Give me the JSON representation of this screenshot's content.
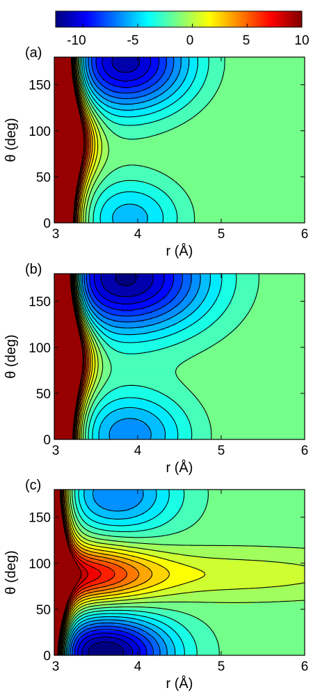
{
  "colorbar": {
    "ticks": [
      "-10",
      "-5",
      "0",
      "5",
      "10"
    ],
    "tick_values": [
      -10,
      -5,
      0,
      5,
      10
    ],
    "range": [
      -12.5,
      10
    ],
    "colormap": [
      "#00007f",
      "#0000ff",
      "#007fff",
      "#00ffff",
      "#7fff7f",
      "#ffff00",
      "#ff7f00",
      "#ff0000",
      "#7f0000"
    ]
  },
  "chart_data": [
    {
      "type": "heatmap",
      "panel_label": "(a)",
      "xlabel": "r (Å)",
      "ylabel": "θ (deg)",
      "xlim": [
        3,
        6
      ],
      "ylim": [
        0,
        180
      ],
      "x_ticks": [
        "3",
        "4",
        "5",
        "6"
      ],
      "x_tick_values": [
        3,
        4,
        5,
        6
      ],
      "y_ticks": [
        "0",
        "50",
        "100",
        "150"
      ],
      "y_tick_values": [
        0,
        50,
        100,
        150
      ],
      "wall_r": 3.25,
      "contour_levels": [
        -12,
        -11,
        -10,
        -9,
        -8,
        -7,
        -6,
        -5,
        -4,
        -3,
        -2,
        -1,
        0,
        1,
        2,
        3,
        4,
        5,
        6,
        7,
        8,
        9
      ],
      "asymptote_value": -1,
      "wells": [
        {
          "r": 3.85,
          "theta": 175,
          "depth": -10.5,
          "sigma_r": 0.55,
          "sigma_theta": 38
        },
        {
          "r": 3.9,
          "theta": 5,
          "depth": -4.5,
          "sigma_r": 0.45,
          "sigma_theta": 32
        }
      ],
      "ridges": [
        {
          "r": 3.2,
          "theta": 90,
          "height": 6.5,
          "sigma_r": 0.2,
          "sigma_theta": 25
        }
      ]
    },
    {
      "type": "heatmap",
      "panel_label": "(b)",
      "xlabel": "r (Å)",
      "ylabel": "θ (deg)",
      "xlim": [
        3,
        6
      ],
      "ylim": [
        0,
        180
      ],
      "x_ticks": [
        "3",
        "4",
        "5",
        "6"
      ],
      "x_tick_values": [
        3,
        4,
        5,
        6
      ],
      "y_ticks": [
        "0",
        "50",
        "100",
        "150"
      ],
      "y_tick_values": [
        0,
        50,
        100,
        150
      ],
      "wall_r": 3.25,
      "contour_levels": [
        -12,
        -11,
        -10,
        -9,
        -8,
        -7,
        -6,
        -5,
        -4,
        -3,
        -2,
        -1,
        0,
        1,
        2,
        3,
        4,
        5,
        6,
        7,
        8,
        9
      ],
      "asymptote_value": -1.2,
      "wells": [
        {
          "r": 3.85,
          "theta": 175,
          "depth": -11,
          "sigma_r": 0.7,
          "sigma_theta": 42
        },
        {
          "r": 3.9,
          "theta": 5,
          "depth": -5.5,
          "sigma_r": 0.5,
          "sigma_theta": 34
        }
      ],
      "ridges": [
        {
          "r": 3.2,
          "theta": 90,
          "height": 6,
          "sigma_r": 0.2,
          "sigma_theta": 25
        }
      ]
    },
    {
      "type": "heatmap",
      "panel_label": "(c)",
      "xlabel": "r (Å)",
      "ylabel": "θ (deg)",
      "xlim": [
        3,
        6
      ],
      "ylim": [
        0,
        180
      ],
      "x_ticks": [
        "3",
        "4",
        "5",
        "6"
      ],
      "x_tick_values": [
        3,
        4,
        5,
        6
      ],
      "y_ticks": [
        "0",
        "50",
        "100",
        "150"
      ],
      "y_tick_values": [
        0,
        50,
        100,
        150
      ],
      "wall_r": 3.1,
      "contour_levels": [
        -12,
        -11,
        -10,
        -9,
        -8,
        -7,
        -6,
        -5,
        -4,
        -3,
        -2,
        -1,
        0,
        1,
        2,
        3,
        4,
        5,
        6,
        7,
        8,
        9
      ],
      "asymptote_value": -1.5,
      "wells": [
        {
          "r": 3.75,
          "theta": 175,
          "depth": -5.5,
          "sigma_r": 0.5,
          "sigma_theta": 30
        },
        {
          "r": 3.6,
          "theta": 3,
          "depth": -11.5,
          "sigma_r": 0.55,
          "sigma_theta": 28
        }
      ],
      "ridges": [
        {
          "r": 3.3,
          "theta": 88,
          "height": 8,
          "sigma_r": 0.6,
          "sigma_theta": 22
        },
        {
          "r": 5.0,
          "theta": 88,
          "height": 2.2,
          "sigma_r": 1.4,
          "sigma_theta": 18
        }
      ]
    }
  ]
}
